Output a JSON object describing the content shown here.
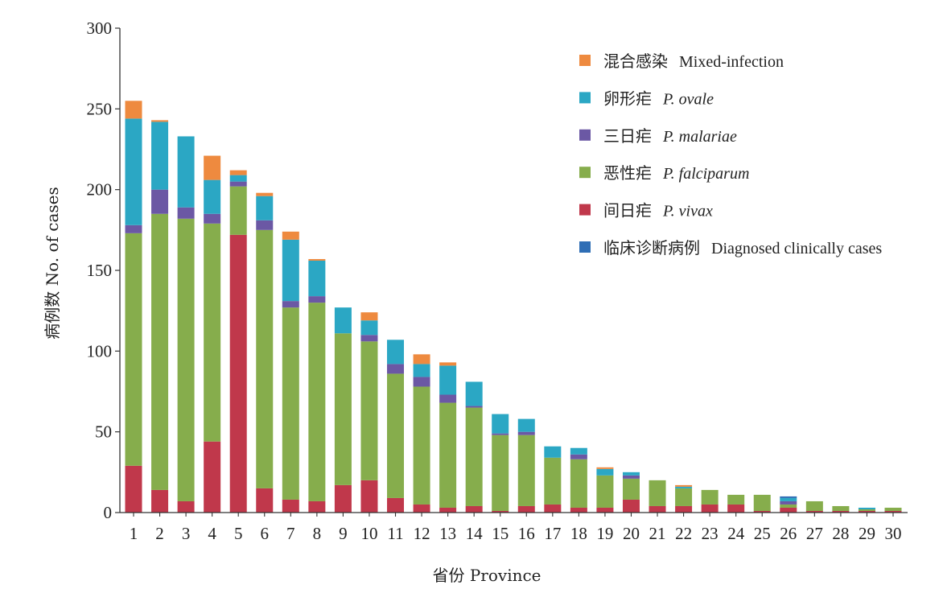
{
  "chart_data": {
    "type": "bar",
    "stacked": true,
    "xlabel": "省份 Province",
    "ylabel": "病例数 No. of cases",
    "ylim": [
      0,
      300
    ],
    "yticks": [
      0,
      50,
      100,
      150,
      200,
      250,
      300
    ],
    "categories": [
      "1",
      "2",
      "3",
      "4",
      "5",
      "6",
      "7",
      "8",
      "9",
      "10",
      "11",
      "12",
      "13",
      "14",
      "15",
      "16",
      "17",
      "18",
      "19",
      "20",
      "21",
      "22",
      "23",
      "24",
      "25",
      "26",
      "27",
      "28",
      "29",
      "30"
    ],
    "legend_position": "top-right",
    "grid": false,
    "legend": [
      {
        "key": "mixed",
        "zh": "混合感染",
        "en": "Mixed-infection",
        "italic": false,
        "color": "#ee8a3f"
      },
      {
        "key": "ovale",
        "zh": "卵形疟",
        "en": "P. ovale",
        "italic": true,
        "color": "#2ba7c4"
      },
      {
        "key": "malariae",
        "zh": "三日疟",
        "en": "P. malariae",
        "italic": true,
        "color": "#6b58a4"
      },
      {
        "key": "falciparum",
        "zh": "恶性疟",
        "en": "P. falciparum",
        "italic": true,
        "color": "#86ad4c"
      },
      {
        "key": "vivax",
        "zh": "间日疟",
        "en": "P. vivax",
        "italic": true,
        "color": "#c0384b"
      },
      {
        "key": "clinical",
        "zh": "临床诊断病例",
        "en": "Diagnosed clinically cases",
        "italic": false,
        "color": "#2f6eb5"
      }
    ],
    "series": [
      {
        "name": "间日疟 P. vivax",
        "key": "vivax",
        "color": "#c0384b",
        "values": [
          29,
          14,
          7,
          44,
          172,
          15,
          8,
          7,
          17,
          20,
          9,
          5,
          3,
          4,
          1,
          4,
          5,
          3,
          3,
          8,
          4,
          4,
          5,
          5,
          1,
          3,
          1,
          1,
          1,
          1
        ]
      },
      {
        "name": "恶性疟 P. falciparum",
        "key": "falciparum",
        "color": "#86ad4c",
        "values": [
          144,
          171,
          175,
          135,
          30,
          160,
          119,
          123,
          94,
          86,
          77,
          73,
          65,
          61,
          47,
          44,
          29,
          30,
          20,
          13,
          16,
          11,
          9,
          6,
          10,
          2,
          6,
          3,
          1,
          2
        ]
      },
      {
        "name": "三日疟 P. malariae",
        "key": "malariae",
        "color": "#6b58a4",
        "values": [
          5,
          15,
          7,
          6,
          3,
          6,
          4,
          4,
          0,
          4,
          6,
          6,
          5,
          1,
          1,
          2,
          0,
          3,
          0,
          2,
          0,
          0,
          0,
          0,
          0,
          2,
          0,
          0,
          0,
          0
        ]
      },
      {
        "name": "卵形疟 P. ovale",
        "key": "ovale",
        "color": "#2ba7c4",
        "values": [
          66,
          42,
          44,
          21,
          4,
          15,
          38,
          22,
          16,
          9,
          15,
          8,
          18,
          15,
          12,
          8,
          7,
          4,
          4,
          2,
          0,
          1,
          0,
          0,
          0,
          2,
          0,
          0,
          1,
          0
        ]
      },
      {
        "name": "混合感染 Mixed-infection",
        "key": "mixed",
        "color": "#ee8a3f",
        "values": [
          11,
          1,
          0,
          15,
          3,
          2,
          5,
          1,
          0,
          5,
          0,
          6,
          2,
          0,
          0,
          0,
          0,
          0,
          1,
          0,
          0,
          1,
          0,
          0,
          0,
          0,
          0,
          0,
          0,
          0
        ]
      },
      {
        "name": "临床诊断病例 Diagnosed clinically cases",
        "key": "clinical",
        "color": "#2f6eb5",
        "values": [
          0,
          0,
          0,
          0,
          0,
          0,
          0,
          0,
          0,
          0,
          0,
          0,
          0,
          0,
          0,
          0,
          0,
          0,
          0,
          0,
          0,
          0,
          0,
          0,
          0,
          1,
          0,
          0,
          0,
          0
        ]
      }
    ]
  }
}
